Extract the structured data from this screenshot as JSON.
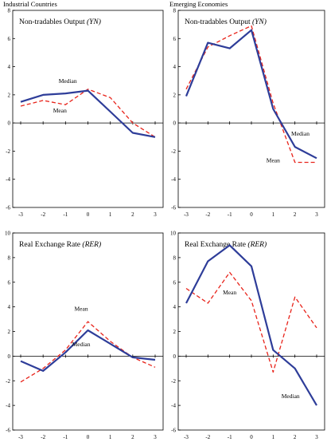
{
  "headers": {
    "left": "Industrial Countries",
    "right": "Emerging Economies"
  },
  "colors": {
    "median": "#2e3d99",
    "mean": "#e8231a"
  },
  "chart_data": [
    {
      "type": "line",
      "title": "Non-tradables Output ",
      "title_italic": "(YN)",
      "x": [
        -3,
        -2,
        -1,
        0,
        1,
        2,
        3
      ],
      "xticks": [
        "-3",
        "-2",
        "-1",
        "0",
        "1",
        "2",
        "3"
      ],
      "yticks": [
        "-6",
        "-4",
        "-2",
        "0",
        "2",
        "4",
        "6",
        "8"
      ],
      "ylim": [
        -6,
        8
      ],
      "series": [
        {
          "name": "Median",
          "style": "solid",
          "values": [
            1.5,
            2.0,
            2.1,
            2.3,
            0.8,
            -0.7,
            -1.0
          ]
        },
        {
          "name": "Mean",
          "style": "dashed",
          "values": [
            1.2,
            1.6,
            1.3,
            2.4,
            1.8,
            0.0,
            -1.0
          ]
        }
      ],
      "annotations": [
        {
          "text": "Median",
          "x": -0.9,
          "y": 2.85
        },
        {
          "text": "Mean",
          "x": -1.25,
          "y": 0.75
        }
      ]
    },
    {
      "type": "line",
      "title": "Non-tradables Output ",
      "title_italic": "(YN)",
      "x": [
        -3,
        -2,
        -1,
        0,
        1,
        2,
        3
      ],
      "xticks": [
        "-3",
        "-2",
        "-1",
        "0",
        "1",
        "2",
        "3"
      ],
      "yticks": [
        "-6",
        "-4",
        "-2",
        "0",
        "2",
        "4",
        "6",
        "8"
      ],
      "ylim": [
        -6,
        8
      ],
      "series": [
        {
          "name": "Median",
          "style": "solid",
          "values": [
            1.9,
            5.7,
            5.3,
            6.6,
            1.0,
            -1.7,
            -2.5
          ]
        },
        {
          "name": "Mean",
          "style": "dashed",
          "values": [
            2.4,
            5.4,
            6.2,
            6.9,
            1.4,
            -2.8,
            -2.8
          ]
        }
      ],
      "annotations": [
        {
          "text": "Median",
          "x": 2.25,
          "y": -0.9
        },
        {
          "text": "Mean",
          "x": 1.0,
          "y": -2.8
        }
      ]
    },
    {
      "type": "line",
      "title": "Real Exchange Rate ",
      "title_italic": "(RER)",
      "x": [
        -3,
        -2,
        -1,
        0,
        1,
        2,
        3
      ],
      "xticks": [
        "-3",
        "-2",
        "-1",
        "0",
        "1",
        "2",
        "3"
      ],
      "yticks": [
        "-6",
        "-4",
        "-2",
        "0",
        "2",
        "4",
        "6",
        "8",
        "10"
      ],
      "ylim": [
        -6,
        10
      ],
      "series": [
        {
          "name": "Median",
          "style": "solid",
          "values": [
            -0.4,
            -1.2,
            0.3,
            2.1,
            1.0,
            -0.1,
            -0.3
          ]
        },
        {
          "name": "Mean",
          "style": "dashed",
          "values": [
            -2.1,
            -1.0,
            0.5,
            2.8,
            1.2,
            -0.1,
            -0.9
          ]
        }
      ],
      "annotations": [
        {
          "text": "Mean",
          "x": -0.3,
          "y": 3.7
        },
        {
          "text": "Median",
          "x": -0.3,
          "y": 0.8
        }
      ]
    },
    {
      "type": "line",
      "title": "Real Exchange Rate ",
      "title_italic": "(RER)",
      "x": [
        -3,
        -2,
        -1,
        0,
        1,
        2,
        3
      ],
      "xticks": [
        "-3",
        "-2",
        "-1",
        "0",
        "1",
        "2",
        "3"
      ],
      "yticks": [
        "-6",
        "-4",
        "-2",
        "0",
        "2",
        "4",
        "6",
        "8",
        "10"
      ],
      "ylim": [
        -6,
        10
      ],
      "series": [
        {
          "name": "Median",
          "style": "solid",
          "values": [
            4.3,
            7.7,
            9.0,
            7.3,
            0.5,
            -1.0,
            -4.0
          ]
        },
        {
          "name": "Mean",
          "style": "dashed",
          "values": [
            5.5,
            4.3,
            6.8,
            4.5,
            -1.3,
            4.8,
            2.3
          ]
        }
      ],
      "annotations": [
        {
          "text": "Mean",
          "x": -1.0,
          "y": 5.0
        },
        {
          "text": "Median",
          "x": 1.8,
          "y": -3.4
        }
      ]
    }
  ]
}
